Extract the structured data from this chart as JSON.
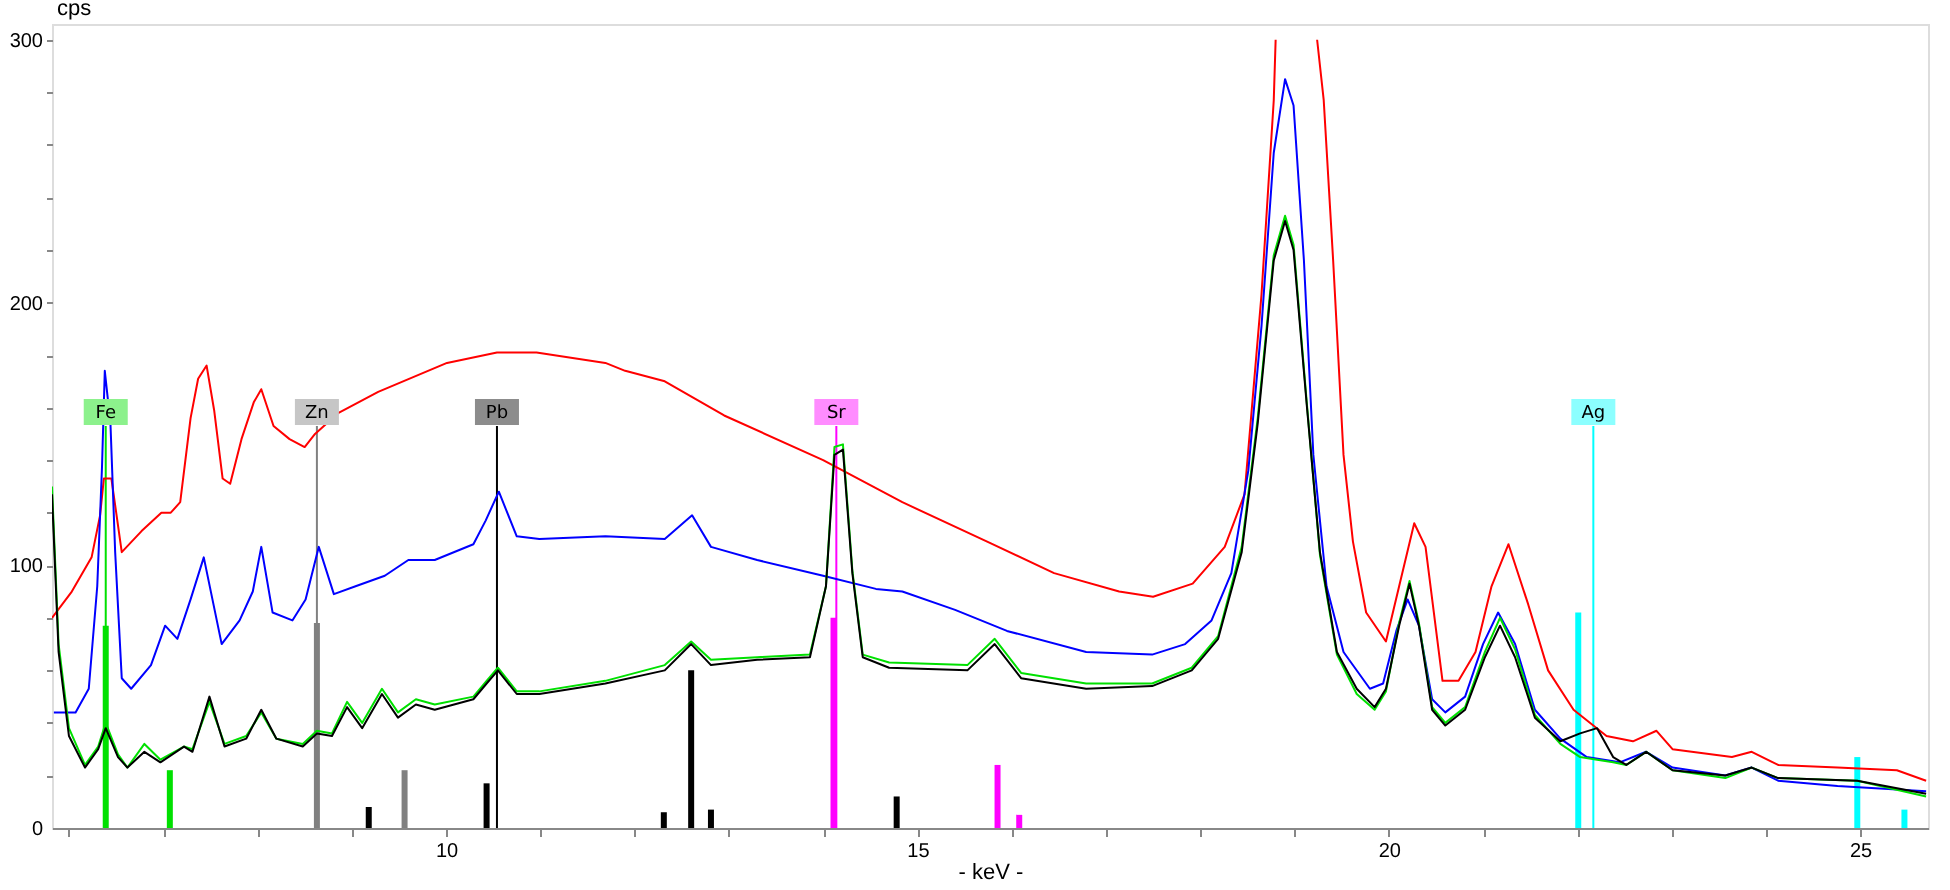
{
  "chart_data": {
    "type": "line",
    "xlabel": "- keV -",
    "ylabel": "cps",
    "xlim": [
      5.82,
      25.72
    ],
    "ylim": [
      0,
      306
    ],
    "xticks": [
      {
        "value": 6,
        "label": null
      },
      {
        "value": 7,
        "label": null
      },
      {
        "value": 8,
        "label": null
      },
      {
        "value": 9,
        "label": null
      },
      10,
      {
        "value": 11,
        "label": null
      },
      {
        "value": 12,
        "label": null
      },
      {
        "value": 13,
        "label": null
      },
      {
        "value": 14,
        "label": null
      },
      15,
      {
        "value": 16,
        "label": null
      },
      {
        "value": 17,
        "label": null
      },
      {
        "value": 18,
        "label": null
      },
      {
        "value": 19,
        "label": null
      },
      20,
      {
        "value": 21,
        "label": null
      },
      {
        "value": 22,
        "label": null
      },
      {
        "value": 23,
        "label": null
      },
      {
        "value": 24,
        "label": null
      },
      25
    ],
    "yticks": [
      0,
      {
        "value": 20,
        "label": null
      },
      {
        "value": 40,
        "label": null
      },
      {
        "value": 60,
        "label": null
      },
      {
        "value": 80,
        "label": null
      },
      100,
      {
        "value": 120,
        "label": null
      },
      {
        "value": 140,
        "label": null
      },
      {
        "value": 160,
        "label": null
      },
      {
        "value": 180,
        "label": null
      },
      200,
      {
        "value": 220,
        "label": null
      },
      {
        "value": 240,
        "label": null
      },
      {
        "value": 260,
        "label": null
      },
      {
        "value": 280,
        "label": null
      },
      300
    ],
    "grid": false,
    "series": [
      {
        "color": "#ff0000",
        "x": [
          5.82,
          6.03,
          6.24,
          6.33,
          6.37,
          6.45,
          6.56,
          6.77,
          6.98,
          7.08,
          7.18,
          7.29,
          7.37,
          7.46,
          7.54,
          7.63,
          7.71,
          7.83,
          7.96,
          8.04,
          8.17,
          8.34,
          8.5,
          8.61,
          8.86,
          9.28,
          10.01,
          10.54,
          10.96,
          11.69,
          11.9,
          12.32,
          12.95,
          14.0,
          14.84,
          15.74,
          16.45,
          17.14,
          17.5,
          17.92,
          18.26,
          18.47,
          18.65,
          18.78,
          18.8,
          19.0,
          19.24,
          19.31,
          19.41,
          19.52,
          19.62,
          19.76,
          19.97,
          20.11,
          20.27,
          20.39,
          20.57,
          20.74,
          20.92,
          21.09,
          21.27,
          21.48,
          21.69,
          21.96,
          22.31,
          22.59,
          22.84,
          23.01,
          23.64,
          23.85,
          24.13,
          24.76,
          25.39,
          25.7
        ],
        "values": [
          80,
          90,
          103,
          119,
          133,
          133,
          105,
          113,
          120,
          120,
          124,
          156,
          171,
          176,
          159,
          133,
          131,
          148,
          162,
          167,
          153,
          148,
          145,
          150,
          158,
          166,
          177,
          181,
          181,
          177,
          174,
          170,
          157,
          140,
          124,
          109,
          97,
          90,
          88,
          93,
          107,
          127,
          203,
          277,
          300,
          null,
          300,
          277,
          216,
          142,
          109,
          82,
          71,
          92,
          116,
          107,
          56,
          56,
          67,
          92,
          108,
          85,
          60,
          45,
          35,
          33,
          37,
          30,
          27,
          29,
          24,
          23,
          22,
          18
        ]
      },
      {
        "color": "#0000ff",
        "x": [
          5.84,
          6.07,
          6.21,
          6.3,
          6.35,
          6.38,
          6.44,
          6.49,
          6.56,
          6.66,
          6.87,
          7.02,
          7.15,
          7.29,
          7.43,
          7.62,
          7.81,
          7.95,
          8.04,
          8.16,
          8.37,
          8.51,
          8.65,
          8.81,
          9.04,
          9.35,
          9.6,
          9.88,
          10.29,
          10.42,
          10.56,
          10.75,
          10.99,
          11.69,
          12.32,
          12.61,
          12.81,
          13.3,
          14.0,
          14.56,
          14.84,
          15.4,
          15.95,
          16.79,
          17.49,
          17.84,
          18.12,
          18.33,
          18.51,
          18.65,
          18.78,
          18.9,
          18.99,
          19.1,
          19.2,
          19.34,
          19.52,
          19.8,
          19.94,
          20.08,
          20.2,
          20.32,
          20.46,
          20.6,
          20.81,
          21.0,
          21.16,
          21.34,
          21.55,
          21.82,
          22.1,
          22.45,
          22.73,
          23.01,
          23.57,
          23.85,
          24.13,
          24.76,
          25.7
        ],
        "values": [
          44,
          44,
          53,
          92,
          137,
          174,
          154,
          105,
          57,
          53,
          62,
          77,
          72,
          87,
          103,
          70,
          79,
          90,
          107,
          82,
          79,
          87,
          107,
          89,
          92,
          96,
          102,
          102,
          108,
          117,
          128,
          111,
          110,
          111,
          110,
          119,
          107,
          102,
          96,
          91,
          90,
          83,
          75,
          67,
          66,
          70,
          79,
          97,
          136,
          191,
          257,
          285,
          275,
          216,
          142,
          92,
          67,
          53,
          55,
          75,
          87,
          77,
          49,
          44,
          50,
          70,
          82,
          70,
          45,
          34,
          27,
          25,
          29,
          23,
          20,
          23,
          18,
          16,
          14
        ]
      },
      {
        "color": "#00e000",
        "x": [
          5.82,
          5.89,
          6.0,
          6.17,
          6.31,
          6.39,
          6.52,
          6.62,
          6.8,
          6.97,
          7.22,
          7.31,
          7.49,
          7.65,
          7.88,
          8.04,
          8.2,
          8.48,
          8.63,
          8.79,
          8.95,
          9.11,
          9.32,
          9.49,
          9.68,
          9.88,
          10.29,
          10.43,
          10.55,
          10.75,
          10.99,
          11.69,
          12.32,
          12.6,
          12.81,
          13.3,
          13.86,
          14.03,
          14.12,
          14.21,
          14.31,
          14.42,
          14.7,
          15.53,
          15.82,
          16.1,
          16.79,
          17.49,
          17.91,
          18.19,
          18.44,
          18.61,
          18.78,
          18.9,
          18.99,
          19.13,
          19.27,
          19.45,
          19.66,
          19.85,
          19.97,
          20.11,
          20.22,
          20.32,
          20.46,
          20.6,
          20.81,
          21.02,
          21.18,
          21.34,
          21.55,
          21.82,
          22.03,
          22.21,
          22.38,
          22.52,
          22.73,
          23.01,
          23.57,
          23.85,
          24.13,
          24.97,
          25.7
        ],
        "values": [
          130,
          70,
          38,
          24,
          31,
          40,
          28,
          23,
          32,
          26,
          31,
          30,
          48,
          32,
          35,
          44,
          34,
          32,
          37,
          36,
          48,
          40,
          53,
          44,
          49,
          47,
          50,
          56,
          61,
          52,
          52,
          56,
          62,
          71,
          64,
          65,
          66,
          92,
          145,
          146,
          98,
          66,
          63,
          62,
          72,
          59,
          55,
          55,
          61,
          73,
          107,
          156,
          218,
          233,
          222,
          162,
          104,
          66,
          51,
          45,
          52,
          78,
          94,
          78,
          46,
          40,
          46,
          67,
          80,
          68,
          43,
          32,
          27,
          26,
          25,
          24,
          29,
          22,
          19,
          23,
          19,
          18,
          12
        ]
      },
      {
        "color": "#000000",
        "x": [
          5.82,
          5.89,
          6.0,
          6.17,
          6.31,
          6.39,
          6.52,
          6.62,
          6.8,
          6.97,
          7.22,
          7.31,
          7.49,
          7.65,
          7.88,
          8.04,
          8.2,
          8.48,
          8.63,
          8.79,
          8.95,
          9.11,
          9.32,
          9.49,
          9.68,
          9.88,
          10.29,
          10.43,
          10.55,
          10.75,
          10.99,
          11.69,
          12.32,
          12.6,
          12.81,
          13.3,
          13.86,
          14.03,
          14.12,
          14.21,
          14.31,
          14.42,
          14.7,
          15.53,
          15.82,
          16.1,
          16.79,
          17.49,
          17.91,
          18.19,
          18.44,
          18.61,
          18.78,
          18.9,
          18.99,
          19.13,
          19.27,
          19.45,
          19.66,
          19.85,
          19.97,
          20.11,
          20.22,
          20.32,
          20.46,
          20.6,
          20.81,
          21.02,
          21.18,
          21.34,
          21.55,
          21.82,
          22.03,
          22.21,
          22.38,
          22.52,
          22.73,
          23.01,
          23.57,
          23.85,
          24.13,
          24.97,
          25.7
        ],
        "values": [
          127,
          67,
          35,
          23,
          30,
          38,
          27,
          23,
          29,
          25,
          31,
          29,
          50,
          31,
          34,
          45,
          34,
          31,
          36,
          35,
          46,
          38,
          51,
          42,
          47,
          45,
          49,
          55,
          60,
          51,
          51,
          55,
          60,
          70,
          62,
          64,
          65,
          92,
          142,
          144,
          97,
          65,
          61,
          60,
          70,
          57,
          53,
          54,
          60,
          72,
          105,
          154,
          216,
          231,
          220,
          161,
          105,
          67,
          53,
          46,
          53,
          77,
          93,
          77,
          45,
          39,
          45,
          65,
          77,
          65,
          42,
          33,
          36,
          38,
          27,
          24,
          29,
          22,
          20,
          23,
          19,
          18,
          13
        ]
      },
      {
        "type": "bar",
        "color": "#00e000",
        "x": [
          6.39,
          7.07
        ],
        "values": [
          77,
          22
        ]
      },
      {
        "type": "bar",
        "color": "#808080",
        "x": [
          8.63,
          9.56
        ],
        "values": [
          78,
          22
        ]
      },
      {
        "type": "bar",
        "color": "#000000",
        "x": [
          9.18,
          10.43,
          12.31,
          12.6,
          12.81,
          14.78
        ],
        "values": [
          8,
          17,
          6,
          60,
          7,
          12
        ]
      },
      {
        "type": "bar",
        "color": "#ff00ff",
        "x": [
          14.11,
          15.85,
          16.08
        ],
        "values": [
          80,
          24,
          5
        ]
      },
      {
        "type": "bar",
        "color": "#00ffff",
        "x": [
          22.01,
          24.97,
          25.47
        ],
        "values": [
          82,
          27,
          7
        ]
      }
    ],
    "ref_lines": [
      {
        "axis": "x",
        "value": 6.39,
        "label": "Fe",
        "color": "#00e000"
      },
      {
        "axis": "x",
        "value": 8.63,
        "label": "Zn",
        "color": "#808080"
      },
      {
        "axis": "x",
        "value": 10.54,
        "label": "Pb",
        "color": "#000000"
      },
      {
        "axis": "x",
        "value": 14.14,
        "label": "Sr",
        "color": "#ff00ff"
      },
      {
        "axis": "x",
        "value": 22.17,
        "label": "Ag",
        "color": "#00ffff"
      }
    ]
  }
}
